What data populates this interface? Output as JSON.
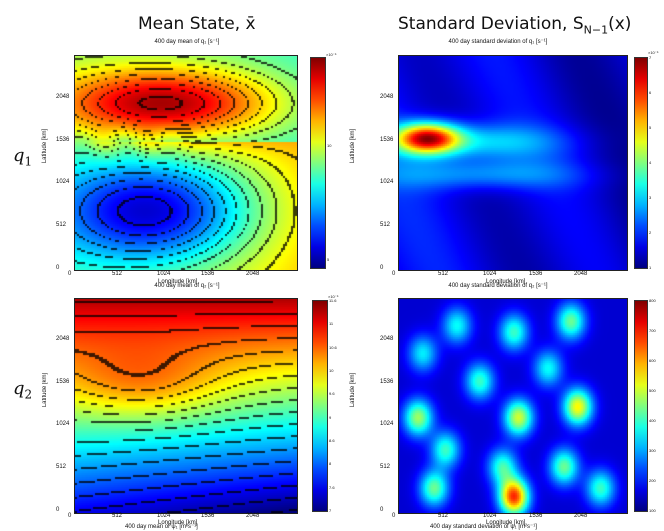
{
  "column_titles": [
    "Mean State, x̄",
    "Standard Deviation, S"
  ],
  "column_title_subscript": "N−1",
  "column_title_suffix": "(x)",
  "row_labels": [
    {
      "var": "q",
      "sub": "1"
    },
    {
      "var": "q",
      "sub": "2"
    }
  ],
  "chart_data": [
    {
      "type": "heatmap",
      "title": "400 day mean of q₁ [s⁻¹]",
      "xlabel": "Longitude [km]",
      "ylabel": "Latitude [km]",
      "xticks": [
        "0",
        "512",
        "1024",
        "1536",
        "2048"
      ],
      "yticks": [
        "0",
        "512",
        "1024",
        "1536",
        "2048"
      ],
      "colorbar_ticks": [
        "10",
        "5"
      ],
      "colorbar_exponent": "×10⁻⁵",
      "colormap": "jet",
      "contours": true
    },
    {
      "type": "heatmap",
      "title": "400 day standard deviation of q₁ [s⁻¹]",
      "xlabel": "Longitude [km]",
      "ylabel": "Latitude [km]",
      "xticks": [
        "0",
        "512",
        "1024",
        "1536",
        "2048"
      ],
      "yticks": [
        "0",
        "512",
        "1024",
        "1536",
        "2048"
      ],
      "colorbar_ticks": [
        "7",
        "6",
        "5",
        "4",
        "3",
        "2",
        "1"
      ],
      "colorbar_exponent": "×10⁻⁵",
      "colormap": "jet",
      "contours": false
    },
    {
      "type": "heatmap",
      "title": "400 day mean of q₂ [s⁻¹]",
      "xlabel": "Longitude [km]",
      "ylabel": "Latitude [km]",
      "xticks": [
        "0",
        "512",
        "1024",
        "1536",
        "2048"
      ],
      "yticks": [
        "0",
        "512",
        "1024",
        "1536",
        "2048"
      ],
      "colorbar_ticks": [
        "11.6",
        "11",
        "10.6",
        "10",
        "9.6",
        "9",
        "8.6",
        "8",
        "7.6",
        "7"
      ],
      "colorbar_exponent": "×10⁻⁵",
      "colormap": "jet",
      "contours": true
    },
    {
      "type": "heatmap",
      "title": "400 day standard deviation of q₂ [s⁻¹]",
      "xlabel": "Longitude [km]",
      "ylabel": "Latitude [km]",
      "xticks": [
        "0",
        "512",
        "1024",
        "1536",
        "2048"
      ],
      "yticks": [
        "0",
        "512",
        "1024",
        "1536",
        "2048"
      ],
      "colorbar_ticks": [
        "800",
        "700",
        "600",
        "500",
        "400",
        "300",
        "200",
        "100"
      ],
      "colorbar_exponent": "",
      "colormap": "jet",
      "contours": false
    }
  ],
  "bottom_labels": [
    "400 day mean of ψ₁ [m²s⁻¹]",
    "400 day standard deviation of ψ₁ [m²s⁻¹]"
  ]
}
